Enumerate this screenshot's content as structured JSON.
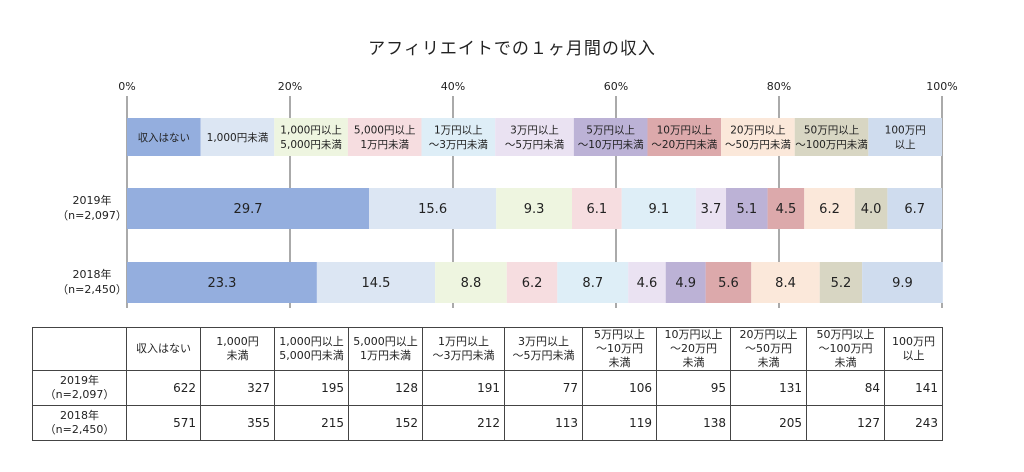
{
  "title": "アフィリエイトでの１ヶ月間の収入",
  "colors": [
    "#94aede",
    "#dce6f3",
    "#eef5e0",
    "#f6dde0",
    "#deeef7",
    "#eae2f2",
    "#bcb2d6",
    "#dca9ab",
    "#fbe8da",
    "#d8d6c3",
    "#cfdcee"
  ],
  "chart_data": {
    "type": "bar",
    "orientation": "horizontal",
    "stacked": "percent",
    "title": "アフィリエイトでの１ヶ月間の収入",
    "x_ticks": [
      "0%",
      "20%",
      "40%",
      "60%",
      "80%",
      "100%"
    ],
    "xlim": [
      0,
      100
    ],
    "grid": true,
    "legend_position": "top",
    "categories": [
      "2019年\n（n=2,097）",
      "2018年\n（n=2,450）"
    ],
    "series": [
      {
        "name": "収入はない",
        "values": [
          29.7,
          23.3
        ]
      },
      {
        "name": "1,000円未満",
        "values": [
          15.6,
          14.5
        ]
      },
      {
        "name": "1,000円以上\n5,000円未満",
        "values": [
          9.3,
          8.8
        ]
      },
      {
        "name": "5,000円以上\n1万円未満",
        "values": [
          6.1,
          6.2
        ]
      },
      {
        "name": "1万円以上\n～3万円未満",
        "values": [
          9.1,
          8.7
        ]
      },
      {
        "name": "3万円以上\n～5万円未満",
        "values": [
          3.7,
          4.6
        ]
      },
      {
        "name": "5万円以上\n～10万円未満",
        "values": [
          5.1,
          4.9
        ]
      },
      {
        "name": "10万円以上\n～20万円未満",
        "values": [
          4.5,
          5.6
        ]
      },
      {
        "name": "20万円以上\n～50万円未満",
        "values": [
          6.2,
          8.4
        ]
      },
      {
        "name": "50万円以上\n～100万円未満",
        "values": [
          4.0,
          5.2
        ]
      },
      {
        "name": "100万円\n以上",
        "values": [
          6.7,
          9.9
        ]
      }
    ]
  },
  "table": {
    "headers": [
      "",
      "収入はない",
      "1,000円\n未満",
      "1,000円以上\n5,000円未満",
      "5,000円以上\n1万円未満",
      "1万円以上\n～3万円未満",
      "3万円以上\n～5万円未満",
      "5万円以上\n～10万円\n未満",
      "10万円以上\n～20万円\n未満",
      "20万円以上\n～50万円\n未満",
      "50万円以上\n～100万円\n未満",
      "100万円\n以上"
    ],
    "rows": [
      {
        "label": "2019年\n（n=2,097）",
        "values": [
          "622",
          "327",
          "195",
          "128",
          "191",
          "77",
          "106",
          "95",
          "131",
          "84",
          "141"
        ]
      },
      {
        "label": "2018年\n（n=2,450）",
        "values": [
          "571",
          "355",
          "215",
          "152",
          "212",
          "113",
          "119",
          "138",
          "205",
          "127",
          "243"
        ]
      }
    ]
  }
}
